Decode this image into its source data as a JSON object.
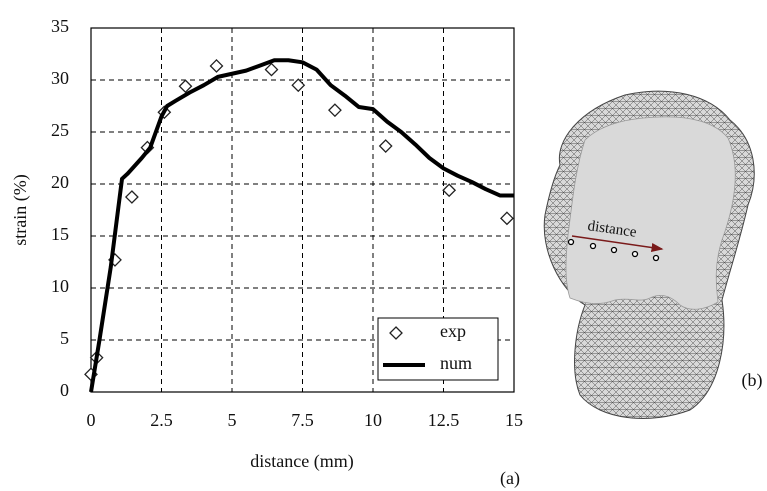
{
  "chart_data": {
    "type": "line",
    "x_label": "distance (mm)",
    "y_label": "strain (%)",
    "xlim": [
      0,
      15
    ],
    "xticks": [
      0,
      2.5,
      5,
      7.5,
      10,
      12.5,
      15
    ],
    "ylim": [
      0,
      35
    ],
    "yticks": [
      0,
      5,
      10,
      15,
      20,
      25,
      30,
      35
    ],
    "grid": true,
    "legend": "lower right",
    "series": [
      {
        "name": "exp",
        "style": "marker",
        "color": "#222222",
        "x": [
          0,
          0.2,
          0.85,
          1.45,
          2.0,
          2.6,
          3.35,
          4.45,
          6.4,
          7.35,
          8.65,
          10.45,
          12.7,
          14.75
        ],
        "values": [
          1.7,
          3.3,
          12.7,
          18.75,
          23.5,
          26.9,
          29.4,
          31.35,
          31.0,
          29.5,
          27.1,
          23.65,
          19.4,
          16.7
        ]
      },
      {
        "name": "num",
        "style": "line",
        "color": "#000000",
        "x": [
          0,
          0.3,
          0.7,
          1.1,
          1.3,
          1.8,
          2.1,
          2.5,
          2.7,
          3,
          3.5,
          4,
          4.5,
          5,
          5.5,
          6,
          6.5,
          7,
          7.5,
          8,
          8.5,
          9,
          9.5,
          10,
          10.5,
          11,
          11.5,
          12,
          12.5,
          13,
          13.5,
          14,
          14.5,
          15
        ],
        "values": [
          0,
          5,
          12,
          20.5,
          21,
          22.5,
          23.5,
          26.5,
          27.5,
          28,
          28.8,
          29.5,
          30.3,
          30.6,
          30.9,
          31.4,
          31.9,
          31.9,
          31.7,
          31,
          29.5,
          28.5,
          27.4,
          27.2,
          26,
          25,
          23.8,
          22.5,
          21.5,
          20.8,
          20.2,
          19.5,
          18.9,
          18.9
        ]
      }
    ]
  },
  "panel_labels": [
    "(a)",
    "(b)"
  ],
  "figure_annotation": "distance"
}
